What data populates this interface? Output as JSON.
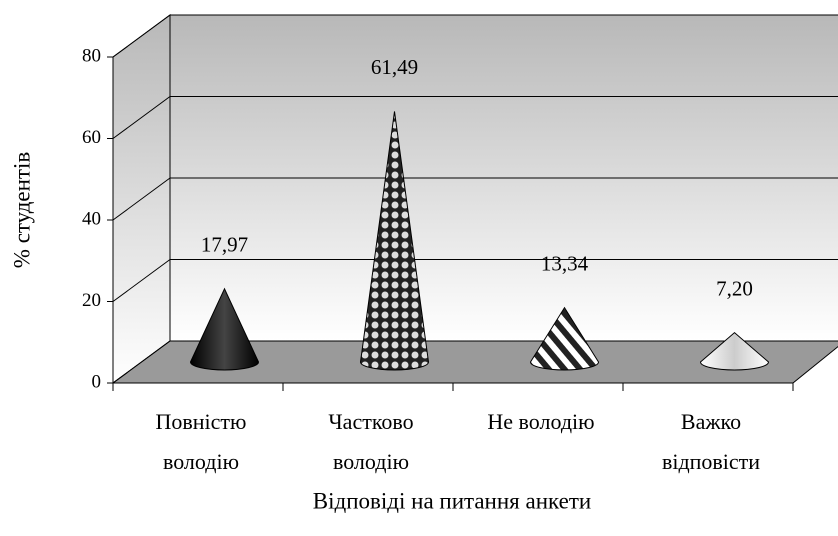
{
  "chart_data": {
    "type": "cone3d",
    "categories": [
      "Повністю володію",
      "Частково володію",
      "Не володію",
      "Важко відповісти"
    ],
    "values": [
      17.97,
      61.49,
      13.34,
      7.2
    ],
    "value_labels": [
      "17,97",
      "61,49",
      "13,34",
      "7,20"
    ],
    "ylim": [
      0,
      80
    ],
    "yticks": [
      0,
      20,
      40,
      60,
      80
    ],
    "grid": true,
    "ylabel": "% студентів",
    "xlabel": "Відповіді на питання анкети"
  }
}
